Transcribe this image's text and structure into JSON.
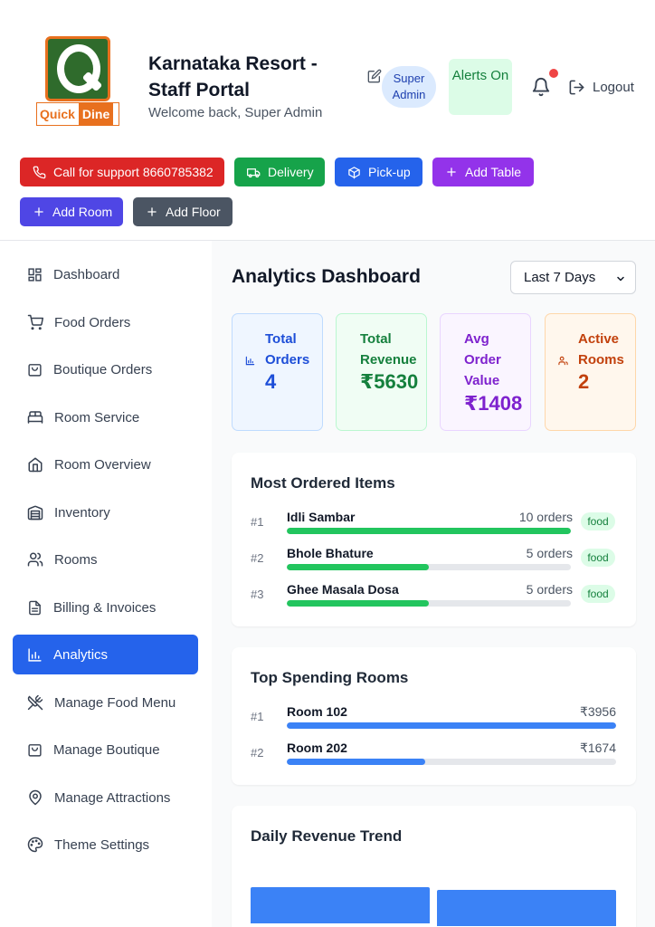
{
  "header": {
    "logo": {
      "word1": "Quick",
      "word2": "Dine"
    },
    "title": "Karnataka Resort - Staff Portal",
    "subtitle": "Welcome back, Super Admin",
    "role": "Super Admin",
    "alerts": "Alerts On",
    "logout": "Logout"
  },
  "actions": {
    "support": "Call for support 8660785382",
    "delivery": "Delivery",
    "pickup": "Pick-up",
    "add_table": "Add Table",
    "add_room": "Add Room",
    "add_floor": "Add Floor"
  },
  "sidebar": {
    "items": [
      {
        "label": "Dashboard",
        "icon": "dashboard-icon"
      },
      {
        "label": "Food Orders",
        "icon": "cart-icon"
      },
      {
        "label": "Boutique Orders",
        "icon": "bag-icon"
      },
      {
        "label": "Room Service",
        "icon": "bed-icon"
      },
      {
        "label": "Room Overview",
        "icon": "home-icon"
      },
      {
        "label": "Inventory",
        "icon": "warehouse-icon"
      },
      {
        "label": "Rooms",
        "icon": "users-icon"
      },
      {
        "label": "Billing & Invoices",
        "icon": "file-icon"
      },
      {
        "label": "Analytics",
        "icon": "bar-chart-icon"
      },
      {
        "label": "Manage Food Menu",
        "icon": "utensils-crossed-icon"
      },
      {
        "label": "Manage Boutique",
        "icon": "shopping-bag-icon"
      },
      {
        "label": "Manage Attractions",
        "icon": "map-pin-icon"
      },
      {
        "label": "Theme Settings",
        "icon": "palette-icon"
      }
    ],
    "active_index": 8
  },
  "main": {
    "title": "Analytics Dashboard",
    "range": "Last 7 Days",
    "stats": {
      "orders": {
        "label": "Total Orders",
        "value": "4"
      },
      "revenue": {
        "label": "Total Revenue",
        "value": "₹5630"
      },
      "avg": {
        "label": "Avg Order Value",
        "value": "₹1408"
      },
      "rooms": {
        "label": "Active Rooms",
        "value": "2"
      }
    },
    "most_ordered": {
      "title": "Most Ordered Items",
      "items": [
        {
          "rank": "#1",
          "name": "Idli Sambar",
          "count": "10 orders",
          "tag": "food",
          "fraction": 1.0
        },
        {
          "rank": "#2",
          "name": "Bhole Bhature",
          "count": "5 orders",
          "tag": "food",
          "fraction": 0.5
        },
        {
          "rank": "#3",
          "name": "Ghee Masala Dosa",
          "count": "5 orders",
          "tag": "food",
          "fraction": 0.5
        }
      ]
    },
    "top_rooms": {
      "title": "Top Spending Rooms",
      "items": [
        {
          "rank": "#1",
          "name": "Room 102",
          "amount": "₹3956",
          "fraction": 1.0
        },
        {
          "rank": "#2",
          "name": "Room 202",
          "amount": "₹1674",
          "fraction": 0.42
        }
      ]
    },
    "revenue_trend": {
      "title": "Daily Revenue Trend"
    }
  },
  "colors": {
    "accent": "#2563eb",
    "food_bar": "#22c55e",
    "room_bar": "#3b82f6"
  }
}
